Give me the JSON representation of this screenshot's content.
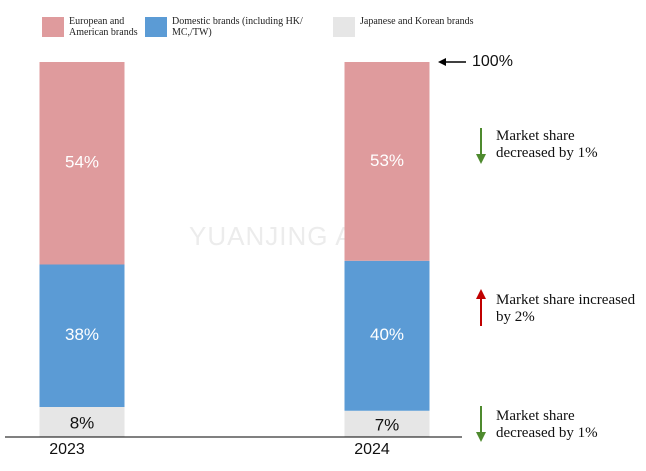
{
  "chart_data": {
    "type": "stacked_bar",
    "categories": [
      "2023",
      "2024"
    ],
    "series": [
      {
        "name": "Japanese and Korean brands",
        "color": "#e6e6e6",
        "values": [
          8,
          7
        ],
        "value_labels": [
          "8%",
          "7%"
        ]
      },
      {
        "name": "Domestic brands (including HK/ MC,/TW)",
        "color": "#5b9bd5",
        "values": [
          38,
          40
        ],
        "value_labels": [
          "38%",
          "40%"
        ]
      },
      {
        "name": "European and American brands",
        "color": "#df9b9d",
        "values": [
          54,
          53
        ],
        "value_labels": [
          "54%",
          "53%"
        ]
      }
    ],
    "ylim": [
      0,
      100
    ],
    "yticks": [
      {
        "value": 100,
        "label": "100%"
      }
    ],
    "annotations": [
      "Market share decreased by 1%",
      "Market share increased by 2%",
      "Market share decreased by 1%"
    ],
    "watermark": "YUANJING AUTO"
  }
}
